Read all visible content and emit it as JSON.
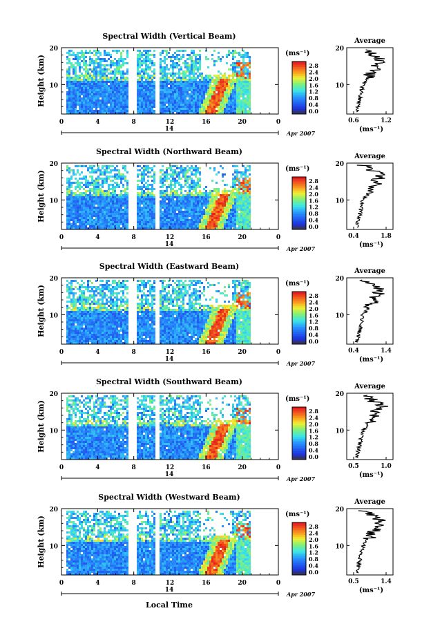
{
  "figure": {
    "xlabel": "Local Time",
    "date_label": "Apr 2007",
    "day_label": "14",
    "colorbar_unit": "(ms⁻¹)",
    "profile_title": "Average",
    "profile_xlabel": "(ms⁻¹)"
  },
  "chart_data": [
    {
      "type": "heatmap",
      "title": "Spectral Width (Vertical Beam)",
      "ylabel": "Height (km)",
      "xlabel": "Local Time",
      "xlim": [
        0,
        24
      ],
      "ylim": [
        2,
        20
      ],
      "x_ticks": [
        "0",
        "4",
        "8",
        "12",
        "16",
        "20",
        "0"
      ],
      "y_ticks": [
        "10",
        "20"
      ],
      "colorbar": {
        "ticks": [
          "0.0",
          "0.4",
          "0.8",
          "1.2",
          "1.6",
          "2.0",
          "2.4",
          "2.8"
        ],
        "range": [
          0,
          3.0
        ]
      },
      "profile": {
        "title": "Average",
        "xlim": [
          0.6,
          1.2
        ],
        "x_ticks": [
          "0.6",
          "1.2"
        ]
      }
    },
    {
      "type": "heatmap",
      "title": "Spectral Width (Northward Beam)",
      "ylabel": "Height (km)",
      "xlabel": "Local Time",
      "xlim": [
        0,
        24
      ],
      "ylim": [
        2,
        20
      ],
      "x_ticks": [
        "0",
        "4",
        "8",
        "12",
        "16",
        "20",
        "0"
      ],
      "y_ticks": [
        "10",
        "20"
      ],
      "colorbar": {
        "ticks": [
          "0.0",
          "0.4",
          "0.8",
          "1.2",
          "1.6",
          "2.0",
          "2.4",
          "2.8"
        ],
        "range": [
          0,
          3.0
        ]
      },
      "profile": {
        "title": "Average",
        "xlim": [
          0.4,
          1.8
        ],
        "x_ticks": [
          "0.4",
          "1.8"
        ]
      }
    },
    {
      "type": "heatmap",
      "title": "Spectral Width (Eastward Beam)",
      "ylabel": "Height (km)",
      "xlabel": "Local Time",
      "xlim": [
        0,
        24
      ],
      "ylim": [
        2,
        20
      ],
      "x_ticks": [
        "0",
        "4",
        "8",
        "12",
        "16",
        "20",
        "0"
      ],
      "y_ticks": [
        "10",
        "20"
      ],
      "colorbar": {
        "ticks": [
          "0.0",
          "0.4",
          "0.8",
          "1.2",
          "1.6",
          "2.0",
          "2.4",
          "2.8"
        ],
        "range": [
          0,
          3.0
        ]
      },
      "profile": {
        "title": "Average",
        "xlim": [
          0.4,
          1.4
        ],
        "x_ticks": [
          "0.4",
          "1.4"
        ]
      }
    },
    {
      "type": "heatmap",
      "title": "Spectral Width (Southward Beam)",
      "ylabel": "Height (km)",
      "xlabel": "Local Time",
      "xlim": [
        0,
        24
      ],
      "ylim": [
        2,
        20
      ],
      "x_ticks": [
        "0",
        "4",
        "8",
        "12",
        "16",
        "20",
        "0"
      ],
      "y_ticks": [
        "10",
        "20"
      ],
      "colorbar": {
        "ticks": [
          "0.0",
          "0.4",
          "0.8",
          "1.2",
          "1.6",
          "2.0",
          "2.4",
          "2.8"
        ],
        "range": [
          0,
          3.0
        ]
      },
      "profile": {
        "title": "Average",
        "xlim": [
          0.5,
          1.2
        ],
        "x_ticks": [
          "0.5",
          "1.0"
        ]
      }
    },
    {
      "type": "heatmap",
      "title": "Spectral Width (Westward Beam)",
      "ylabel": "Height (km)",
      "xlabel": "Local Time",
      "xlim": [
        0,
        24
      ],
      "ylim": [
        2,
        20
      ],
      "x_ticks": [
        "0",
        "4",
        "8",
        "12",
        "16",
        "20",
        "0"
      ],
      "y_ticks": [
        "10",
        "20"
      ],
      "colorbar": {
        "ticks": [
          "0.0",
          "0.4",
          "0.8",
          "1.2",
          "1.6",
          "2.0",
          "2.4",
          "2.8"
        ],
        "range": [
          0,
          3.0
        ]
      },
      "profile": {
        "title": "Average",
        "xlim": [
          0.5,
          1.4
        ],
        "x_ticks": [
          "0.5",
          "1.4"
        ]
      }
    }
  ]
}
